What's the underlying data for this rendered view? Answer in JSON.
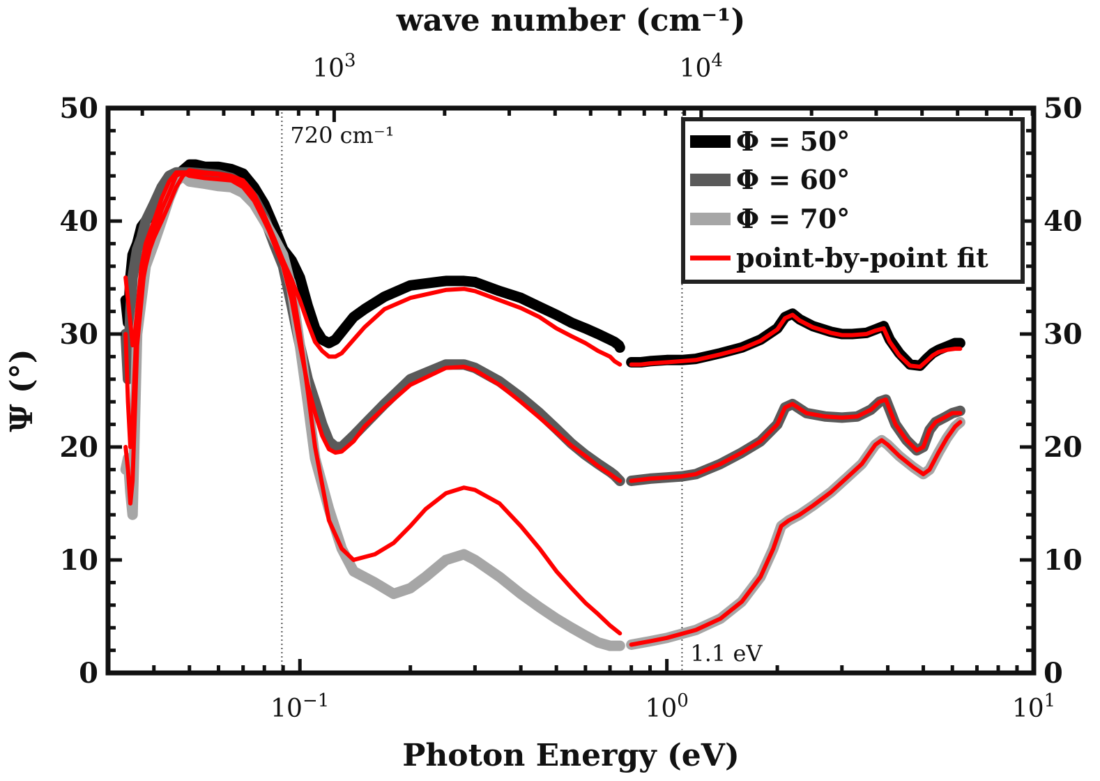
{
  "chart_data": {
    "type": "line",
    "xlabel": "Photon Energy (eV)",
    "ylabel": "Ψ (°)",
    "top_xlabel": "wave number (cm⁻¹)",
    "x_scale": "log",
    "xlim": [
      0.03,
      10
    ],
    "ylim": [
      0,
      50
    ],
    "y_ticks": [
      0,
      10,
      20,
      30,
      40,
      50
    ],
    "x_tick_labels": [
      {
        "value": 0.1,
        "base": "10",
        "exp": "−1"
      },
      {
        "value": 1,
        "base": "10",
        "exp": "0"
      },
      {
        "value": 10,
        "base": "10",
        "exp": "1"
      }
    ],
    "top_tick_labels": [
      {
        "value_cm": 1000,
        "base": "10",
        "exp": "3"
      },
      {
        "value_cm": 10000,
        "base": "10",
        "exp": "4"
      }
    ],
    "annotations": [
      {
        "text": "720 cm⁻¹",
        "x": 0.0893
      },
      {
        "text": "1.1 eV",
        "x": 1.1
      }
    ],
    "legend": {
      "location": "top-right",
      "entries": [
        "Φ = 50°",
        "Φ = 60°",
        "Φ = 70°",
        "point-by-point fit"
      ]
    },
    "series": [
      {
        "name": "Φ = 50°",
        "role": "data",
        "color": "#000000",
        "segments": [
          {
            "x": [
              0.0335,
              0.034,
              0.0345,
              0.035,
              0.036,
              0.037,
              0.038,
              0.04,
              0.042,
              0.044,
              0.046,
              0.048,
              0.05,
              0.052,
              0.055,
              0.06,
              0.065,
              0.07,
              0.075,
              0.08,
              0.085,
              0.09,
              0.095,
              0.1,
              0.105,
              0.11,
              0.115,
              0.12,
              0.125,
              0.13,
              0.14,
              0.15,
              0.17,
              0.2,
              0.25,
              0.28,
              0.3,
              0.35,
              0.4,
              0.45,
              0.5,
              0.55,
              0.6,
              0.65,
              0.7,
              0.72,
              0.74,
              0.745
            ],
            "y": [
              33,
              31,
              35,
              37,
              38,
              39.5,
              40,
              41,
              42,
              43,
              44,
              44.5,
              45,
              45,
              44.8,
              44.8,
              44.6,
              44.2,
              43,
              41.5,
              39.5,
              37.5,
              36.5,
              35,
              32.5,
              30.5,
              29.5,
              29.2,
              29.5,
              30.2,
              31.5,
              32.2,
              33.3,
              34.3,
              34.7,
              34.7,
              34.6,
              33.8,
              33.2,
              32.4,
              31.7,
              31,
              30.5,
              30,
              29.5,
              29.3,
              29,
              28.8
            ]
          },
          {
            "x": [
              0.8,
              0.85,
              0.9,
              1,
              1.1,
              1.2,
              1.4,
              1.6,
              1.8,
              2,
              2.1,
              2.2,
              2.3,
              2.5,
              2.8,
              3,
              3.2,
              3.5,
              3.7,
              3.9,
              4.05,
              4.3,
              4.6,
              4.9,
              5.1,
              5.3,
              5.5,
              5.8,
              6.1,
              6.3
            ],
            "y": [
              27.5,
              27.5,
              27.6,
              27.7,
              27.7,
              27.8,
              28.3,
              28.8,
              29.5,
              30.5,
              31.5,
              31.8,
              31.3,
              30.7,
              30.2,
              30,
              30,
              30.1,
              30.4,
              30.7,
              29.5,
              28.3,
              27.3,
              27.2,
              27.8,
              28.3,
              28.6,
              28.9,
              29.2,
              29.2
            ]
          }
        ]
      },
      {
        "name": "Φ = 60°",
        "role": "data",
        "color": "#5a5a5a",
        "segments": [
          {
            "x": [
              0.0335,
              0.034,
              0.0345,
              0.035,
              0.036,
              0.037,
              0.038,
              0.04,
              0.042,
              0.044,
              0.046,
              0.048,
              0.05,
              0.055,
              0.06,
              0.065,
              0.07,
              0.075,
              0.08,
              0.085,
              0.09,
              0.095,
              0.1,
              0.105,
              0.11,
              0.115,
              0.12,
              0.125,
              0.13,
              0.14,
              0.15,
              0.17,
              0.2,
              0.25,
              0.28,
              0.3,
              0.35,
              0.4,
              0.45,
              0.5,
              0.55,
              0.6,
              0.65,
              0.7,
              0.72,
              0.745
            ],
            "y": [
              30,
              26,
              32,
              35,
              37.5,
              38.5,
              40,
              41.5,
              43,
              44,
              44.3,
              44.3,
              44.3,
              44.2,
              44.1,
              43.8,
              43.2,
              42,
              40.3,
              38,
              36,
              32.5,
              29,
              26,
              24,
              22,
              20.5,
              20,
              20,
              21,
              22,
              23.8,
              26,
              27.3,
              27.3,
              27,
              25.8,
              24.4,
              23,
              21.6,
              20.3,
              19.3,
              18.5,
              17.8,
              17.5,
              17
            ]
          },
          {
            "x": [
              0.8,
              0.9,
              1,
              1.1,
              1.2,
              1.4,
              1.6,
              1.8,
              2,
              2.1,
              2.2,
              2.4,
              2.7,
              3,
              3.3,
              3.6,
              3.8,
              3.95,
              4.2,
              4.5,
              4.8,
              5,
              5.2,
              5.4,
              5.7,
              6,
              6.3
            ],
            "y": [
              17,
              17.2,
              17.3,
              17.4,
              17.6,
              18.5,
              19.5,
              20.5,
              22,
              23.5,
              23.8,
              23,
              22.7,
              22.6,
              22.7,
              23.3,
              24,
              24.2,
              22,
              20.6,
              19.7,
              20,
              21.5,
              22.2,
              22.6,
              23,
              23.2
            ]
          }
        ]
      },
      {
        "name": "Φ = 70°",
        "role": "data",
        "color": "#a6a6a6",
        "segments": [
          {
            "x": [
              0.0335,
              0.034,
              0.0345,
              0.035,
              0.036,
              0.037,
              0.038,
              0.04,
              0.042,
              0.044,
              0.046,
              0.048,
              0.05,
              0.055,
              0.06,
              0.065,
              0.07,
              0.075,
              0.08,
              0.085,
              0.09,
              0.095,
              0.1,
              0.105,
              0.11,
              0.12,
              0.13,
              0.14,
              0.16,
              0.18,
              0.2,
              0.22,
              0.25,
              0.28,
              0.3,
              0.35,
              0.4,
              0.45,
              0.5,
              0.55,
              0.6,
              0.65,
              0.7,
              0.745
            ],
            "y": [
              18,
              19,
              16,
              14,
              30,
              33,
              36,
              38,
              40,
              42,
              43.5,
              44,
              43.5,
              43.3,
              43.1,
              43,
              42.5,
              41.5,
              40,
              38.5,
              37,
              34,
              29,
              24,
              19,
              14.5,
              11,
              9,
              8,
              7,
              7.5,
              8.5,
              10,
              10.5,
              10,
              8.5,
              7,
              5.8,
              4.8,
              4,
              3.3,
              2.7,
              2.4,
              2.4
            ]
          },
          {
            "x": [
              0.8,
              0.9,
              1,
              1.2,
              1.4,
              1.6,
              1.8,
              1.95,
              2.05,
              2.15,
              2.3,
              2.5,
              2.8,
              3.1,
              3.4,
              3.7,
              3.85,
              4,
              4.3,
              4.7,
              5,
              5.2,
              5.5,
              5.8,
              6.1,
              6.3
            ],
            "y": [
              2.5,
              2.8,
              3.1,
              3.8,
              4.8,
              6.3,
              8.5,
              11,
              13,
              13.5,
              14,
              14.8,
              16,
              17.3,
              18.5,
              20.2,
              20.6,
              20.2,
              19.2,
              18.2,
              17.6,
              18,
              19.5,
              20.8,
              21.8,
              22.2
            ]
          }
        ]
      },
      {
        "name": "point-by-point fit",
        "role": "fit",
        "color": "#ff0000",
        "segments": [
          {
            "x": [
              0.0335,
              0.034,
              0.0345,
              0.035,
              0.0355,
              0.036,
              0.037,
              0.038,
              0.039,
              0.04,
              0.042,
              0.044,
              0.046,
              0.048,
              0.05,
              0.055,
              0.06,
              0.065,
              0.07,
              0.075,
              0.08,
              0.085,
              0.09,
              0.095,
              0.1,
              0.105,
              0.11,
              0.115,
              0.12,
              0.125,
              0.13,
              0.14,
              0.15,
              0.17,
              0.2,
              0.25,
              0.28,
              0.3,
              0.35,
              0.4,
              0.45,
              0.5,
              0.55,
              0.6,
              0.65,
              0.7,
              0.72,
              0.745
            ],
            "y": [
              35,
              33,
              31,
              29,
              30,
              32,
              34,
              36,
              37.5,
              38.5,
              40,
              41.5,
              43,
              44,
              44.5,
              44.3,
              44.2,
              44,
              43.6,
              42.4,
              40.5,
              38.5,
              36.5,
              34.8,
              33,
              31,
              29.3,
              28.5,
              28,
              28,
              28.3,
              29.5,
              30.6,
              32.2,
              33.2,
              33.9,
              34,
              33.8,
              33,
              32.3,
              31.5,
              30.5,
              29.8,
              29.2,
              28.5,
              28,
              27.6,
              27.3
            ]
          },
          {
            "x": [
              0.0335,
              0.034,
              0.0345,
              0.035,
              0.036,
              0.037,
              0.038,
              0.04,
              0.042,
              0.044,
              0.046,
              0.048,
              0.05,
              0.055,
              0.06,
              0.065,
              0.07,
              0.075,
              0.08,
              0.085,
              0.09,
              0.095,
              0.1,
              0.105,
              0.11,
              0.115,
              0.12,
              0.125,
              0.13,
              0.14,
              0.15,
              0.17,
              0.2,
              0.25,
              0.28,
              0.3,
              0.35,
              0.4,
              0.45,
              0.5,
              0.55,
              0.6,
              0.65,
              0.7,
              0.72,
              0.745
            ],
            "y": [
              30,
              24,
              20,
              22,
              32,
              36,
              38,
              40,
              42,
              43.5,
              44.3,
              44.3,
              44.3,
              44.2,
              44.1,
              43.8,
              43.2,
              42,
              40.2,
              38,
              36,
              33,
              29,
              25.5,
              23,
              21,
              19.8,
              19.5,
              19.6,
              20.5,
              21.8,
              23.5,
              25.5,
              27,
              27.1,
              26.8,
              25.5,
              24,
              22.6,
              21.3,
              20.1,
              19.2,
              18.3,
              17.6,
              17.3,
              17
            ]
          },
          {
            "x": [
              0.0335,
              0.034,
              0.0345,
              0.035,
              0.036,
              0.037,
              0.038,
              0.04,
              0.042,
              0.044,
              0.046,
              0.048,
              0.05,
              0.055,
              0.06,
              0.065,
              0.07,
              0.075,
              0.08,
              0.085,
              0.09,
              0.095,
              0.1,
              0.105,
              0.11,
              0.12,
              0.13,
              0.14,
              0.16,
              0.18,
              0.2,
              0.22,
              0.25,
              0.28,
              0.3,
              0.35,
              0.4,
              0.45,
              0.5,
              0.55,
              0.6,
              0.65,
              0.7,
              0.745
            ],
            "y": [
              20,
              18,
              15,
              17,
              29,
              33,
              37,
              39,
              41,
              42.5,
              44,
              44.3,
              44,
              43.8,
              43.7,
              43.6,
              43,
              41.8,
              40,
              38.2,
              36.5,
              34.5,
              30,
              25,
              20,
              13.5,
              11,
              10,
              10.5,
              11.5,
              13,
              14.5,
              15.9,
              16.4,
              16.2,
              15,
              13,
              11,
              9,
              7.5,
              6.2,
              5.2,
              4.2,
              3.5
            ]
          },
          {
            "x": [
              0.8,
              0.85,
              0.9,
              1,
              1.1,
              1.2,
              1.4,
              1.6,
              1.8,
              2,
              2.1,
              2.2,
              2.3,
              2.5,
              2.8,
              3,
              3.2,
              3.5,
              3.7,
              3.9,
              4.05,
              4.3,
              4.6,
              4.9,
              5.1,
              5.3,
              5.5,
              5.8,
              6.1,
              6.3
            ],
            "y": [
              27.3,
              27.3,
              27.4,
              27.5,
              27.6,
              27.7,
              28.2,
              28.7,
              29.4,
              30.4,
              31.4,
              31.7,
              31.2,
              30.6,
              30.1,
              29.9,
              29.9,
              30,
              30.3,
              30.5,
              29.3,
              28.1,
              27.2,
              27.1,
              27.6,
              28.1,
              28.4,
              28.6,
              28.7,
              28.7
            ]
          },
          {
            "x": [
              0.8,
              0.9,
              1,
              1.1,
              1.2,
              1.4,
              1.6,
              1.8,
              2,
              2.1,
              2.2,
              2.4,
              2.7,
              3,
              3.3,
              3.6,
              3.8,
              3.95,
              4.2,
              4.5,
              4.8,
              5,
              5.2,
              5.4,
              5.7,
              6,
              6.3
            ],
            "y": [
              17,
              17.2,
              17.3,
              17.4,
              17.6,
              18.5,
              19.5,
              20.5,
              22,
              23.5,
              23.8,
              23,
              22.7,
              22.6,
              22.7,
              23.3,
              24,
              24.2,
              22,
              20.6,
              19.7,
              20,
              21.5,
              22.2,
              22.6,
              23,
              23
            ]
          },
          {
            "x": [
              0.8,
              0.9,
              1,
              1.2,
              1.4,
              1.6,
              1.8,
              1.95,
              2.05,
              2.15,
              2.3,
              2.5,
              2.8,
              3.1,
              3.4,
              3.7,
              3.85,
              4,
              4.3,
              4.7,
              5,
              5.2,
              5.5,
              5.8,
              6.1,
              6.3
            ],
            "y": [
              2.5,
              2.8,
              3.1,
              3.8,
              4.8,
              6.3,
              8.5,
              11,
              13,
              13.5,
              14,
              14.8,
              16,
              17.3,
              18.5,
              20.2,
              20.6,
              20.2,
              19.2,
              18.2,
              17.6,
              18,
              19.5,
              20.8,
              21.8,
              22.2
            ]
          }
        ]
      }
    ]
  }
}
